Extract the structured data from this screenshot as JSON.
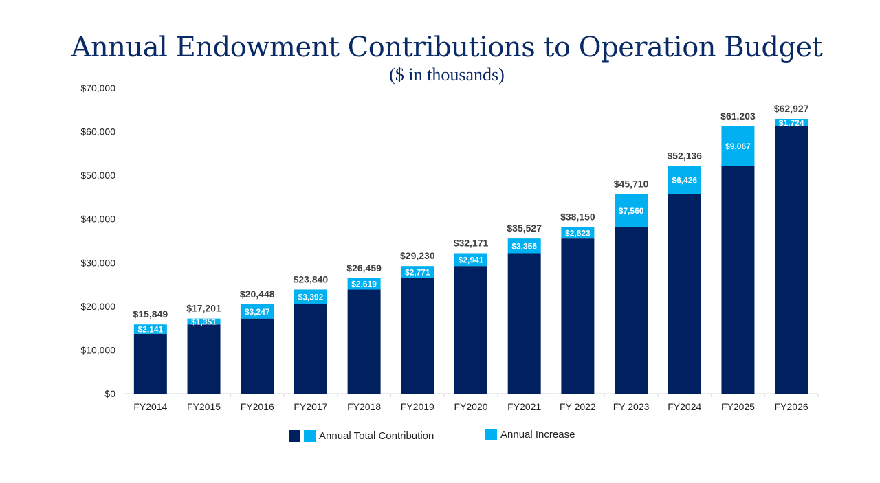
{
  "chart_data": {
    "type": "bar",
    "stacked": true,
    "title": "Annual Endowment Contributions to Operation Budget",
    "subtitle": "($ in thousands)",
    "categories": [
      "FY2014",
      "FY2015",
      "FY2016",
      "FY2017",
      "FY2018",
      "FY2019",
      "FY2020",
      "FY2021",
      "FY 2022",
      "FY 2023",
      "FY2024",
      "FY2025",
      "FY2026"
    ],
    "series": [
      {
        "name": "Annual Total Contribution",
        "values": [
          15849,
          17201,
          20448,
          23840,
          26459,
          29230,
          32171,
          35527,
          38150,
          45710,
          52136,
          61203,
          62927
        ],
        "labels": [
          "$15,849",
          "$17,201",
          "$20,448",
          "$23,840",
          "$26,459",
          "$29,230",
          "$32,171",
          "$35,527",
          "$38,150",
          "$45,710",
          "$52,136",
          "$61,203",
          "$62,927"
        ]
      },
      {
        "name": "Annual Increase",
        "values": [
          2141,
          1351,
          3247,
          3392,
          2619,
          2771,
          2941,
          3356,
          2623,
          7560,
          6426,
          9067,
          1724
        ],
        "labels": [
          "$2,141",
          "$1,351",
          "$3,247",
          "$3,392",
          "$2,619",
          "$2,771",
          "$2,941",
          "$3,356",
          "$2,623",
          "$7,560",
          "$6,426",
          "$9,067",
          "$1,724"
        ]
      }
    ],
    "ylim": [
      0,
      70000
    ],
    "yticks": [
      "$0",
      "$10,000",
      "$20,000",
      "$30,000",
      "$40,000",
      "$50,000",
      "$60,000",
      "$70,000"
    ],
    "grid": false,
    "legend": "bottom",
    "colors": {
      "base": "#002060",
      "increase": "#00b0f0"
    }
  }
}
